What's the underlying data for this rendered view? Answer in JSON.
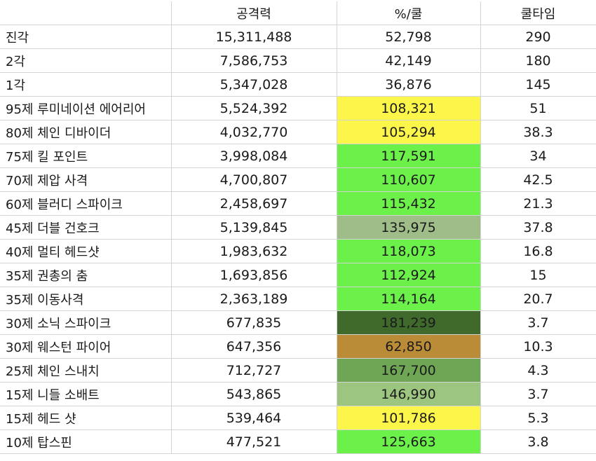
{
  "headers": [
    "",
    "공격력",
    "%/쿨",
    "쿨타임"
  ],
  "rows": [
    {
      "name": "진각",
      "attack": "15,311,488",
      "per_cd": "52,798",
      "cooldown": "290",
      "color": "#ffffff"
    },
    {
      "name": "2각",
      "attack": "7,586,753",
      "per_cd": "42,149",
      "cooldown": "180",
      "color": "#ffffff"
    },
    {
      "name": "1각",
      "attack": "5,347,028",
      "per_cd": "36,876",
      "cooldown": "145",
      "color": "#ffffff"
    },
    {
      "name": "95제 루미네이션 에어리어",
      "attack": "5,524,392",
      "per_cd": "108,321",
      "cooldown": "51",
      "color": "#fdf64a"
    },
    {
      "name": "80제 체인 디바이더",
      "attack": "4,032,770",
      "per_cd": "105,294",
      "cooldown": "38.3",
      "color": "#fdf64a"
    },
    {
      "name": "75제 킬 포인트",
      "attack": "3,998,084",
      "per_cd": "117,591",
      "cooldown": "34",
      "color": "#6cf04a"
    },
    {
      "name": "70제 제압 사격",
      "attack": "4,700,807",
      "per_cd": "110,607",
      "cooldown": "42.5",
      "color": "#6cf04a"
    },
    {
      "name": "60제 블러디 스파이크",
      "attack": "2,458,697",
      "per_cd": "115,432",
      "cooldown": "21.3",
      "color": "#6cf04a"
    },
    {
      "name": "45제 더블 건호크",
      "attack": "5,139,845",
      "per_cd": "135,975",
      "cooldown": "37.8",
      "color": "#9fbd88"
    },
    {
      "name": "40제 멀티 헤드샷",
      "attack": "1,983,632",
      "per_cd": "118,073",
      "cooldown": "16.8",
      "color": "#6cf04a"
    },
    {
      "name": "35제 권총의 춤",
      "attack": "1,693,856",
      "per_cd": "112,924",
      "cooldown": "15",
      "color": "#6cf04a"
    },
    {
      "name": "35제 이동사격",
      "attack": "2,363,189",
      "per_cd": "114,164",
      "cooldown": "20.7",
      "color": "#6cf04a"
    },
    {
      "name": "30제 소닉 스파이크",
      "attack": "677,835",
      "per_cd": "181,239",
      "cooldown": "3.7",
      "color": "#3f6a2b"
    },
    {
      "name": "30제 웨스턴 파이어",
      "attack": "647,356",
      "per_cd": "62,850",
      "cooldown": "10.3",
      "color": "#bb8c38"
    },
    {
      "name": "25제 체인 스내치",
      "attack": "712,727",
      "per_cd": "167,700",
      "cooldown": "4.3",
      "color": "#6fa656"
    },
    {
      "name": "15제 니들 소배트",
      "attack": "543,865",
      "per_cd": "146,990",
      "cooldown": "3.7",
      "color": "#9cc680"
    },
    {
      "name": "15제 헤드 샷",
      "attack": "539,464",
      "per_cd": "101,786",
      "cooldown": "5.3",
      "color": "#fdf64a"
    },
    {
      "name": "10제 탑스핀",
      "attack": "477,521",
      "per_cd": "125,663",
      "cooldown": "3.8",
      "color": "#6cf04a"
    }
  ]
}
